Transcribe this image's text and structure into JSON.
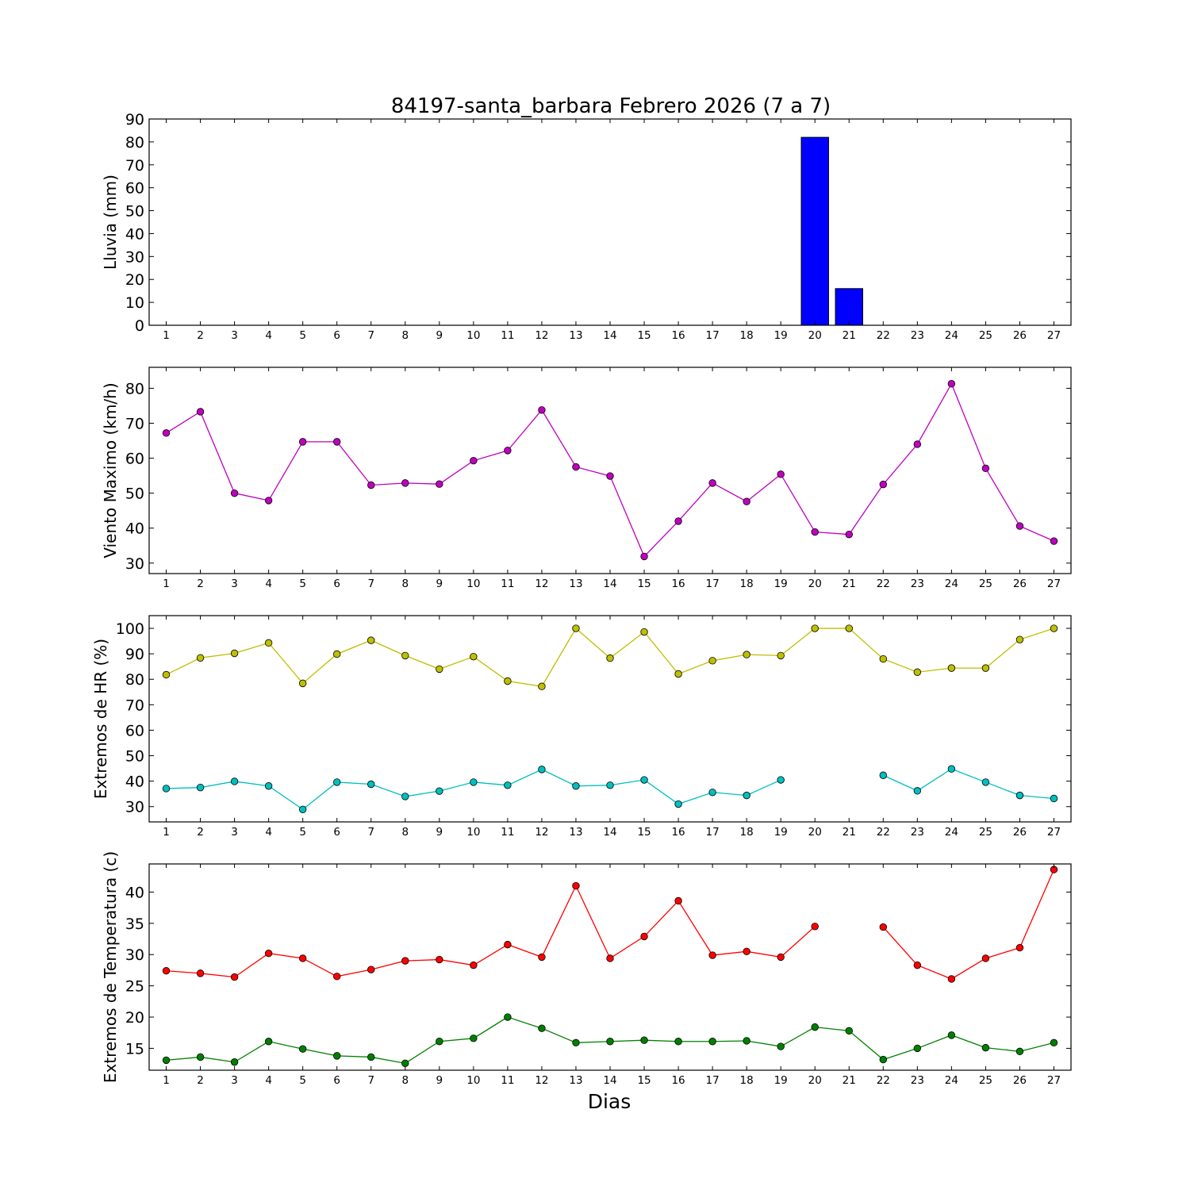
{
  "chart_data": {
    "title": "84197-santa_barbara Febrero 2026  (7 a 7)",
    "xlabel": "Dias",
    "x": [
      1,
      2,
      3,
      4,
      5,
      6,
      7,
      8,
      9,
      10,
      11,
      12,
      13,
      14,
      15,
      16,
      17,
      18,
      19,
      20,
      21,
      22,
      23,
      24,
      25,
      26,
      27
    ],
    "panels": [
      {
        "type": "bar",
        "ylabel": "Lluvia (mm)",
        "ylim": [
          0,
          90
        ],
        "yticks": [
          0,
          10,
          20,
          30,
          40,
          50,
          60,
          70,
          80,
          90
        ],
        "series": [
          {
            "color": "#0000ff",
            "values": [
              0,
              0,
              0,
              0,
              0,
              0,
              0,
              0,
              0,
              0,
              0,
              0,
              0,
              0,
              0,
              0,
              0,
              0,
              0,
              82,
              16,
              0,
              0,
              0,
              0,
              0,
              0
            ]
          }
        ]
      },
      {
        "type": "line",
        "ylabel": "Viento Maximo (km/h)",
        "ylim": [
          27,
          86
        ],
        "yticks": [
          30,
          40,
          50,
          60,
          70,
          80
        ],
        "series": [
          {
            "color": "#bf00bf",
            "values": [
              67.2,
              73.3,
              50,
              47.9,
              64.7,
              64.7,
              52.3,
              52.9,
              52.6,
              59.3,
              62.2,
              73.8,
              57.5,
              54.9,
              31.9,
              42,
              52.9,
              47.6,
              55.4,
              38.9,
              38.2,
              52.5,
              64,
              81.3,
              57.1,
              40.6,
              36.3
            ]
          }
        ]
      },
      {
        "type": "line",
        "ylabel": "Extremos de HR (%)",
        "ylim": [
          24,
          105
        ],
        "yticks": [
          30,
          40,
          50,
          60,
          70,
          80,
          90,
          100
        ],
        "series": [
          {
            "color": "#bfbf00",
            "values": [
              81.8,
              88.4,
              90.2,
              94.3,
              78.4,
              89.9,
              95.3,
              89.3,
              84,
              88.9,
              79.3,
              77.2,
              100,
              88.3,
              98.6,
              82.1,
              87.3,
              89.7,
              89.3,
              100,
              100,
              88,
              82.8,
              84.4,
              84.4,
              95.6,
              100
            ]
          },
          {
            "color": "#00bfbf",
            "values": [
              37.1,
              37.5,
              39.9,
              38.1,
              28.9,
              39.6,
              38.8,
              34,
              36.1,
              39.6,
              38.4,
              44.6,
              38.1,
              38.4,
              40.5,
              31,
              35.6,
              34.4,
              40.5,
              null,
              null,
              42.3,
              36.2,
              44.8,
              39.6,
              34.4,
              33.2
            ]
          }
        ]
      },
      {
        "type": "line",
        "ylabel": "Extremos de Temperatura (c)",
        "ylim": [
          11.5,
          44.5
        ],
        "yticks": [
          15,
          20,
          25,
          30,
          35,
          40
        ],
        "series": [
          {
            "color": "#ff0000",
            "values": [
              27.4,
              27,
              26.4,
              30.2,
              29.4,
              26.5,
              27.6,
              29,
              29.2,
              28.3,
              31.6,
              29.6,
              41,
              29.4,
              32.9,
              38.6,
              29.9,
              30.5,
              29.6,
              34.5,
              null,
              34.4,
              28.3,
              26.1,
              29.4,
              31.1,
              43.6
            ]
          },
          {
            "color": "#008000",
            "values": [
              13.1,
              13.6,
              12.8,
              16.1,
              14.9,
              13.8,
              13.6,
              12.6,
              16.1,
              16.6,
              20,
              18.2,
              15.9,
              16.1,
              16.3,
              16.1,
              16.1,
              16.2,
              15.3,
              18.4,
              17.8,
              13.2,
              15,
              17.1,
              15.1,
              14.5,
              15.9
            ]
          }
        ]
      }
    ]
  }
}
